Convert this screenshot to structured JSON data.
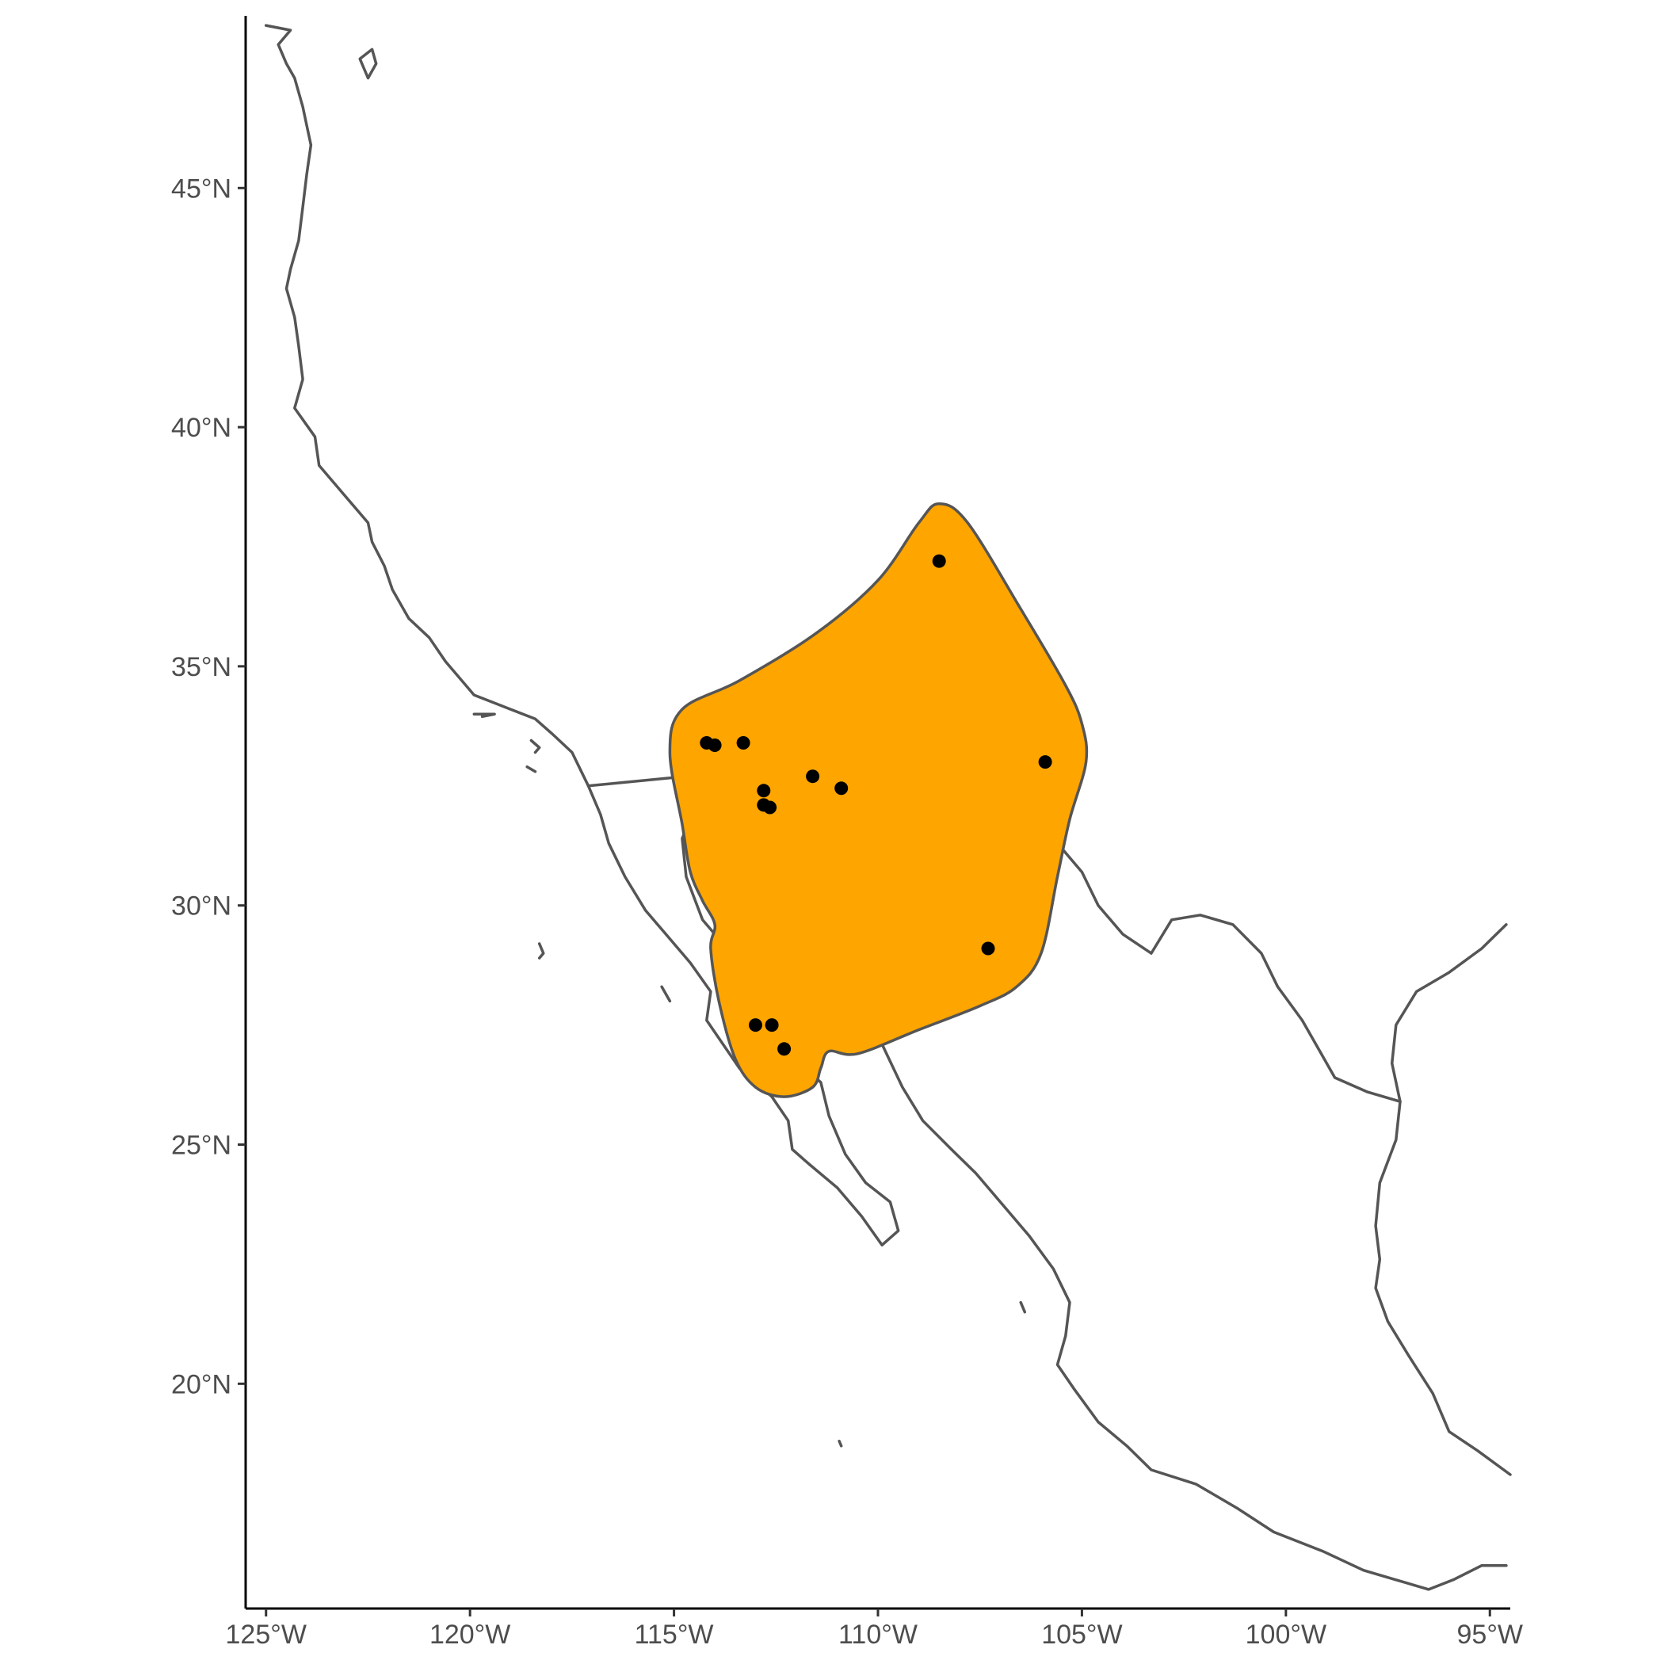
{
  "map": {
    "bounds": {
      "lon": [
        -125.5,
        -94.5
      ],
      "lat": [
        15.3,
        48.6
      ]
    },
    "x_ticks": [
      {
        "value": -125,
        "label": "125°W"
      },
      {
        "value": -120,
        "label": "120°W"
      },
      {
        "value": -115,
        "label": "115°W"
      },
      {
        "value": -110,
        "label": "110°W"
      },
      {
        "value": -105,
        "label": "105°W"
      },
      {
        "value": -100,
        "label": "100°W"
      },
      {
        "value": -95,
        "label": "95°W"
      }
    ],
    "y_ticks": [
      {
        "value": 45,
        "label": "45°N"
      },
      {
        "value": 40,
        "label": "40°N"
      },
      {
        "value": 35,
        "label": "35°N"
      },
      {
        "value": 30,
        "label": "30°N"
      },
      {
        "value": 25,
        "label": "25°N"
      },
      {
        "value": 20,
        "label": "20°N"
      }
    ],
    "colors": {
      "range_fill": "#FFA500",
      "outline": "#555555",
      "points": "#000000",
      "axis": "#000000"
    },
    "range_polygon": [
      [
        -108.5,
        38.4
      ],
      [
        -107.8,
        38.0
      ],
      [
        -106.5,
        36.2
      ],
      [
        -105.4,
        34.6
      ],
      [
        -105.0,
        33.8
      ],
      [
        -104.9,
        33.0
      ],
      [
        -105.3,
        31.8
      ],
      [
        -105.6,
        30.6
      ],
      [
        -106.0,
        29.0
      ],
      [
        -106.6,
        28.3
      ],
      [
        -107.5,
        27.9
      ],
      [
        -109.0,
        27.4
      ],
      [
        -110.5,
        26.9
      ],
      [
        -111.2,
        26.95
      ],
      [
        -111.4,
        26.6
      ],
      [
        -111.6,
        26.2
      ],
      [
        -112.3,
        26.0
      ],
      [
        -113.0,
        26.2
      ],
      [
        -113.5,
        26.8
      ],
      [
        -113.9,
        28.0
      ],
      [
        -114.1,
        29.1
      ],
      [
        -114.0,
        29.6
      ],
      [
        -114.3,
        30.1
      ],
      [
        -114.6,
        30.7
      ],
      [
        -114.8,
        31.7
      ],
      [
        -115.1,
        33.2
      ],
      [
        -114.8,
        34.1
      ],
      [
        -113.4,
        34.7
      ],
      [
        -111.5,
        35.7
      ],
      [
        -110.0,
        36.8
      ],
      [
        -109.0,
        38.0
      ]
    ],
    "occurrence_points": [
      [
        -108.5,
        37.2
      ],
      [
        -105.9,
        33.0
      ],
      [
        -107.3,
        29.1
      ],
      [
        -114.2,
        33.4
      ],
      [
        -114.0,
        33.35
      ],
      [
        -113.3,
        33.4
      ],
      [
        -111.6,
        32.7
      ],
      [
        -110.9,
        32.45
      ],
      [
        -112.8,
        32.4
      ],
      [
        -112.8,
        32.1
      ],
      [
        -112.65,
        32.05
      ],
      [
        -113.0,
        27.5
      ],
      [
        -112.6,
        27.5
      ],
      [
        -112.3,
        27.0
      ]
    ],
    "coastlines": [
      [
        [
          -125.0,
          48.4
        ],
        [
          -124.4,
          48.3
        ],
        [
          -124.7,
          48.0
        ],
        [
          -124.5,
          47.6
        ],
        [
          -124.3,
          47.3
        ],
        [
          -124.1,
          46.7
        ],
        [
          -124.0,
          46.3
        ],
        [
          -123.9,
          45.9
        ],
        [
          -124.0,
          45.3
        ],
        [
          -124.1,
          44.6
        ],
        [
          -124.2,
          43.9
        ],
        [
          -124.4,
          43.3
        ],
        [
          -124.5,
          42.9
        ],
        [
          -124.3,
          42.3
        ],
        [
          -124.2,
          41.7
        ],
        [
          -124.1,
          41.0
        ],
        [
          -124.3,
          40.4
        ],
        [
          -123.8,
          39.8
        ],
        [
          -123.7,
          39.2
        ],
        [
          -123.1,
          38.6
        ],
        [
          -122.5,
          38.0
        ],
        [
          -122.4,
          37.6
        ],
        [
          -122.1,
          37.1
        ],
        [
          -121.9,
          36.6
        ],
        [
          -121.5,
          36.0
        ],
        [
          -121.0,
          35.6
        ],
        [
          -120.6,
          35.1
        ],
        [
          -119.9,
          34.4
        ],
        [
          -119.0,
          34.1
        ],
        [
          -118.4,
          33.9
        ],
        [
          -118.0,
          33.6
        ],
        [
          -117.5,
          33.2
        ],
        [
          -117.1,
          32.5
        ],
        [
          -116.8,
          31.9
        ],
        [
          -116.6,
          31.3
        ],
        [
          -116.2,
          30.6
        ],
        [
          -115.7,
          29.9
        ],
        [
          -115.2,
          29.4
        ],
        [
          -114.6,
          28.8
        ],
        [
          -114.1,
          28.2
        ],
        [
          -114.2,
          27.6
        ],
        [
          -113.8,
          27.1
        ],
        [
          -113.4,
          26.6
        ],
        [
          -112.6,
          26.0
        ],
        [
          -112.2,
          25.5
        ],
        [
          -112.1,
          24.9
        ],
        [
          -111.7,
          24.6
        ],
        [
          -111.0,
          24.1
        ],
        [
          -110.4,
          23.5
        ],
        [
          -109.9,
          22.9
        ],
        [
          -109.5,
          23.2
        ],
        [
          -109.7,
          23.8
        ],
        [
          -110.3,
          24.2
        ],
        [
          -110.8,
          24.8
        ],
        [
          -111.2,
          25.6
        ],
        [
          -111.4,
          26.3
        ],
        [
          -111.8,
          26.6
        ],
        [
          -112.1,
          27.2
        ],
        [
          -112.7,
          27.8
        ],
        [
          -113.1,
          28.4
        ],
        [
          -113.6,
          29.0
        ],
        [
          -114.3,
          29.7
        ],
        [
          -114.7,
          30.6
        ],
        [
          -114.8,
          31.4
        ],
        [
          -114.6,
          31.8
        ],
        [
          -114.1,
          31.5
        ],
        [
          -113.6,
          31.3
        ],
        [
          -113.1,
          31.2
        ],
        [
          -112.3,
          30.5
        ],
        [
          -112.1,
          29.7
        ],
        [
          -111.7,
          29.1
        ],
        [
          -111.1,
          28.3
        ],
        [
          -110.5,
          27.8
        ],
        [
          -109.9,
          27.1
        ],
        [
          -109.4,
          26.2
        ],
        [
          -108.9,
          25.5
        ],
        [
          -108.2,
          24.9
        ],
        [
          -107.6,
          24.4
        ],
        [
          -106.9,
          23.7
        ],
        [
          -106.3,
          23.1
        ],
        [
          -105.7,
          22.4
        ],
        [
          -105.3,
          21.7
        ],
        [
          -105.4,
          21.0
        ],
        [
          -105.6,
          20.4
        ],
        [
          -105.2,
          19.9
        ],
        [
          -104.6,
          19.2
        ],
        [
          -103.9,
          18.7
        ],
        [
          -103.3,
          18.2
        ],
        [
          -102.2,
          17.9
        ],
        [
          -101.2,
          17.4
        ],
        [
          -100.3,
          16.9
        ],
        [
          -99.1,
          16.5
        ],
        [
          -98.1,
          16.1
        ],
        [
          -97.3,
          15.9
        ],
        [
          -96.5,
          15.7
        ],
        [
          -95.9,
          15.9
        ],
        [
          -95.2,
          16.2
        ],
        [
          -94.6,
          16.2
        ]
      ],
      [
        [
          -94.5,
          18.1
        ],
        [
          -95.3,
          18.6
        ],
        [
          -96.0,
          19.0
        ],
        [
          -96.4,
          19.8
        ],
        [
          -97.0,
          20.6
        ],
        [
          -97.5,
          21.3
        ],
        [
          -97.8,
          22.0
        ],
        [
          -97.7,
          22.6
        ],
        [
          -97.8,
          23.3
        ],
        [
          -97.7,
          24.2
        ],
        [
          -97.3,
          25.1
        ],
        [
          -97.2,
          25.9
        ],
        [
          -97.4,
          26.7
        ],
        [
          -97.3,
          27.5
        ],
        [
          -96.8,
          28.2
        ],
        [
          -96.0,
          28.6
        ],
        [
          -95.2,
          29.1
        ],
        [
          -94.6,
          29.6
        ]
      ],
      [
        [
          -97.2,
          25.9
        ],
        [
          -98.0,
          26.1
        ],
        [
          -98.8,
          26.4
        ],
        [
          -99.2,
          27.0
        ],
        [
          -99.6,
          27.6
        ],
        [
          -100.2,
          28.3
        ],
        [
          -100.6,
          29.0
        ],
        [
          -101.3,
          29.6
        ],
        [
          -102.1,
          29.8
        ],
        [
          -102.8,
          29.7
        ],
        [
          -103.3,
          29.0
        ],
        [
          -104.0,
          29.4
        ],
        [
          -104.6,
          30.0
        ],
        [
          -105.0,
          30.7
        ],
        [
          -105.5,
          31.2
        ]
      ],
      [
        [
          -117.1,
          32.5
        ],
        [
          -114.7,
          32.7
        ]
      ],
      [
        [
          -118.5,
          33.45
        ],
        [
          -118.3,
          33.3
        ],
        [
          -118.4,
          33.2
        ]
      ],
      [
        [
          -119.9,
          34.0
        ],
        [
          -119.4,
          34.0
        ],
        [
          -119.7,
          33.95
        ]
      ],
      [
        [
          -118.6,
          32.9
        ],
        [
          -118.4,
          32.8
        ]
      ],
      [
        [
          -118.3,
          29.2
        ],
        [
          -118.2,
          29.0
        ],
        [
          -118.3,
          28.9
        ]
      ],
      [
        [
          -115.3,
          28.3
        ],
        [
          -115.1,
          28.0
        ]
      ],
      [
        [
          -106.5,
          21.7
        ],
        [
          -106.4,
          21.5
        ]
      ],
      [
        [
          -110.95,
          18.8
        ],
        [
          -110.9,
          18.7
        ]
      ],
      [
        [
          -122.4,
          47.9
        ],
        [
          -122.3,
          47.6
        ],
        [
          -122.5,
          47.3
        ],
        [
          -122.7,
          47.7
        ],
        [
          -122.4,
          47.9
        ]
      ]
    ]
  }
}
